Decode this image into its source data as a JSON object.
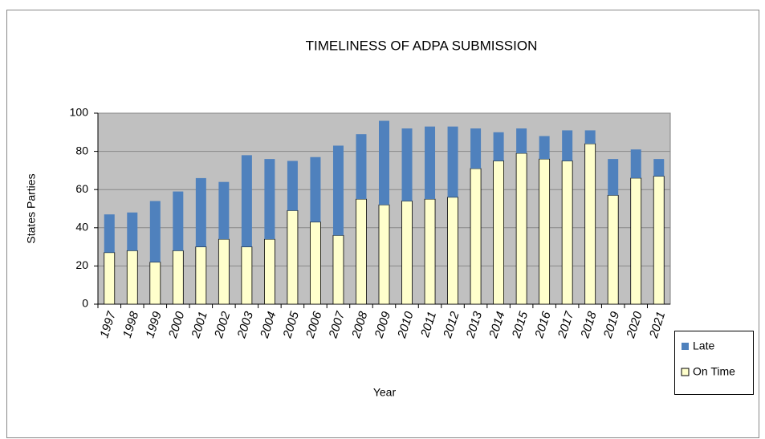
{
  "chart_data": {
    "type": "stacked_bar",
    "title": "TIMELINESS OF ADPA SUBMISSION",
    "x_label": "Year",
    "y_label": "States Parties",
    "categories": [
      "1997",
      "1998",
      "1999",
      "2000",
      "2001",
      "2002",
      "2003",
      "2004",
      "2005",
      "2006",
      "2007",
      "2008",
      "2009",
      "2010",
      "2011",
      "2012",
      "2013",
      "2014",
      "2015",
      "2016",
      "2017",
      "2018",
      "2019",
      "2020",
      "2021"
    ],
    "series": [
      {
        "name": "On Time",
        "color": "#ffffcc",
        "values": [
          27,
          28,
          22,
          28,
          30,
          34,
          30,
          34,
          49,
          43,
          36,
          55,
          52,
          54,
          55,
          56,
          71,
          75,
          79,
          76,
          75,
          84,
          57,
          66,
          67
        ]
      },
      {
        "name": "Late",
        "color": "#4f81bd",
        "values": [
          20,
          20,
          32,
          31,
          36,
          30,
          48,
          42,
          26,
          34,
          47,
          34,
          44,
          38,
          38,
          37,
          21,
          15,
          13,
          12,
          16,
          7,
          19,
          15,
          9
        ]
      }
    ],
    "ylim": [
      0,
      100
    ],
    "yticks": [
      0,
      20,
      40,
      60,
      80,
      100
    ],
    "grid": true,
    "legend": "right"
  }
}
